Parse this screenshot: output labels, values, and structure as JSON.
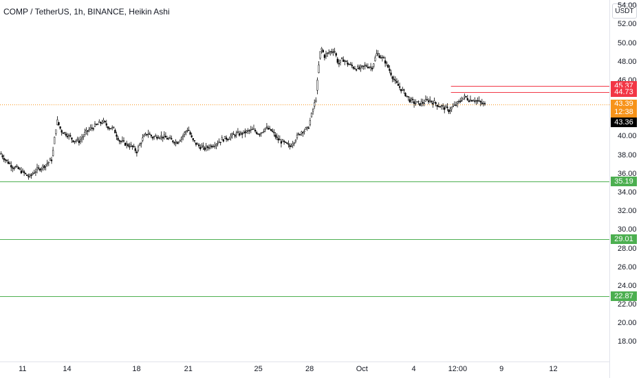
{
  "header": {
    "title": "COMP / TetherUS, 1h, BINANCE, Heikin Ashi",
    "currency_label": "USDT"
  },
  "chart_data": {
    "type": "candlestick",
    "title": "COMP / TetherUS, 1h, BINANCE, Heikin Ashi",
    "ylim": [
      15.9,
      54.6
    ],
    "y_ticks": [
      {
        "v": 54.0,
        "label": "54.00"
      },
      {
        "v": 52.0,
        "label": "52.00"
      },
      {
        "v": 50.0,
        "label": "50.00"
      },
      {
        "v": 48.0,
        "label": "48.00"
      },
      {
        "v": 46.0,
        "label": "46.00"
      },
      {
        "v": 42.0,
        "label": "42.00"
      },
      {
        "v": 40.0,
        "label": "40.00"
      },
      {
        "v": 38.0,
        "label": "38.00"
      },
      {
        "v": 36.0,
        "label": "36.00"
      },
      {
        "v": 34.0,
        "label": "34.00"
      },
      {
        "v": 32.0,
        "label": "32.00"
      },
      {
        "v": 30.0,
        "label": "30.00"
      },
      {
        "v": 28.0,
        "label": "28.00"
      },
      {
        "v": 26.0,
        "label": "26.00"
      },
      {
        "v": 24.0,
        "label": "24.00"
      },
      {
        "v": 22.0,
        "label": "22.00"
      },
      {
        "v": 20.0,
        "label": "20.00"
      },
      {
        "v": 18.0,
        "label": "18.00"
      }
    ],
    "x_ticks": [
      {
        "pos": 0.037,
        "label": "11"
      },
      {
        "pos": 0.11,
        "label": "14"
      },
      {
        "pos": 0.224,
        "label": "18"
      },
      {
        "pos": 0.309,
        "label": "21"
      },
      {
        "pos": 0.424,
        "label": "25"
      },
      {
        "pos": 0.508,
        "label": "28"
      },
      {
        "pos": 0.594,
        "label": "Oct"
      },
      {
        "pos": 0.679,
        "label": "4"
      },
      {
        "pos": 0.751,
        "label": "12:00"
      },
      {
        "pos": 0.823,
        "label": "9"
      },
      {
        "pos": 0.908,
        "label": "12"
      }
    ],
    "horizontal_lines": [
      {
        "value": 45.37,
        "label": "45.37",
        "color": "#f23645",
        "start": 0.74
      },
      {
        "value": 44.73,
        "label": "44.73",
        "color": "#f23645",
        "start": 0.74
      },
      {
        "value": 35.19,
        "label": "35.19",
        "color": "#4caf50",
        "start": 0.0
      },
      {
        "value": 29.01,
        "label": "29.01",
        "color": "#4caf50",
        "start": 0.0
      },
      {
        "value": 22.87,
        "label": "22.87",
        "color": "#4caf50",
        "start": 0.0
      }
    ],
    "current_price": {
      "value": 43.39,
      "label": "43.39",
      "countdown": "12:38",
      "color": "#f7931a"
    },
    "last_price": {
      "value": 43.36,
      "label": "43.36",
      "color": "#000000"
    },
    "price_path": [
      [
        0.0,
        38.2
      ],
      [
        0.01,
        37.4
      ],
      [
        0.02,
        36.8
      ],
      [
        0.03,
        36.5
      ],
      [
        0.04,
        36.0
      ],
      [
        0.048,
        35.6
      ],
      [
        0.055,
        36.2
      ],
      [
        0.065,
        36.6
      ],
      [
        0.075,
        37.0
      ],
      [
        0.085,
        37.6
      ],
      [
        0.09,
        40.4
      ],
      [
        0.093,
        41.7
      ],
      [
        0.1,
        40.6
      ],
      [
        0.11,
        40.2
      ],
      [
        0.12,
        39.6
      ],
      [
        0.13,
        39.5
      ],
      [
        0.14,
        40.4
      ],
      [
        0.15,
        40.9
      ],
      [
        0.158,
        41.2
      ],
      [
        0.168,
        41.6
      ],
      [
        0.178,
        41.0
      ],
      [
        0.186,
        40.8
      ],
      [
        0.196,
        39.5
      ],
      [
        0.206,
        39.2
      ],
      [
        0.216,
        38.9
      ],
      [
        0.224,
        38.4
      ],
      [
        0.232,
        39.6
      ],
      [
        0.242,
        40.4
      ],
      [
        0.25,
        39.9
      ],
      [
        0.26,
        40.1
      ],
      [
        0.27,
        39.9
      ],
      [
        0.28,
        39.6
      ],
      [
        0.29,
        39.4
      ],
      [
        0.3,
        40.1
      ],
      [
        0.308,
        40.9
      ],
      [
        0.315,
        39.6
      ],
      [
        0.325,
        39.0
      ],
      [
        0.335,
        38.7
      ],
      [
        0.345,
        39.0
      ],
      [
        0.355,
        39.3
      ],
      [
        0.365,
        39.7
      ],
      [
        0.375,
        39.9
      ],
      [
        0.385,
        40.2
      ],
      [
        0.395,
        40.3
      ],
      [
        0.405,
        40.5
      ],
      [
        0.415,
        40.7
      ],
      [
        0.425,
        40.3
      ],
      [
        0.435,
        40.9
      ],
      [
        0.445,
        40.6
      ],
      [
        0.455,
        39.7
      ],
      [
        0.465,
        39.3
      ],
      [
        0.475,
        38.9
      ],
      [
        0.485,
        39.8
      ],
      [
        0.495,
        40.6
      ],
      [
        0.505,
        40.8
      ],
      [
        0.512,
        42.6
      ],
      [
        0.518,
        44.1
      ],
      [
        0.522,
        47.2
      ],
      [
        0.526,
        49.6
      ],
      [
        0.532,
        48.6
      ],
      [
        0.54,
        49.0
      ],
      [
        0.548,
        49.3
      ],
      [
        0.555,
        47.7
      ],
      [
        0.562,
        48.3
      ],
      [
        0.57,
        47.8
      ],
      [
        0.58,
        47.4
      ],
      [
        0.59,
        47.2
      ],
      [
        0.6,
        47.6
      ],
      [
        0.61,
        47.4
      ],
      [
        0.618,
        48.9
      ],
      [
        0.625,
        48.5
      ],
      [
        0.632,
        48.0
      ],
      [
        0.64,
        46.9
      ],
      [
        0.648,
        45.8
      ],
      [
        0.656,
        45.2
      ],
      [
        0.664,
        44.6
      ],
      [
        0.672,
        43.9
      ],
      [
        0.68,
        43.6
      ],
      [
        0.688,
        43.5
      ],
      [
        0.696,
        43.7
      ],
      [
        0.704,
        43.9
      ],
      [
        0.712,
        43.6
      ],
      [
        0.72,
        43.3
      ],
      [
        0.728,
        43.1
      ],
      [
        0.736,
        42.8
      ],
      [
        0.744,
        43.2
      ],
      [
        0.752,
        43.6
      ],
      [
        0.758,
        44.1
      ],
      [
        0.764,
        44.2
      ],
      [
        0.77,
        43.9
      ],
      [
        0.776,
        44.0
      ],
      [
        0.782,
        43.8
      ],
      [
        0.788,
        43.6
      ],
      [
        0.794,
        43.4
      ],
      [
        0.798,
        43.36
      ]
    ]
  }
}
